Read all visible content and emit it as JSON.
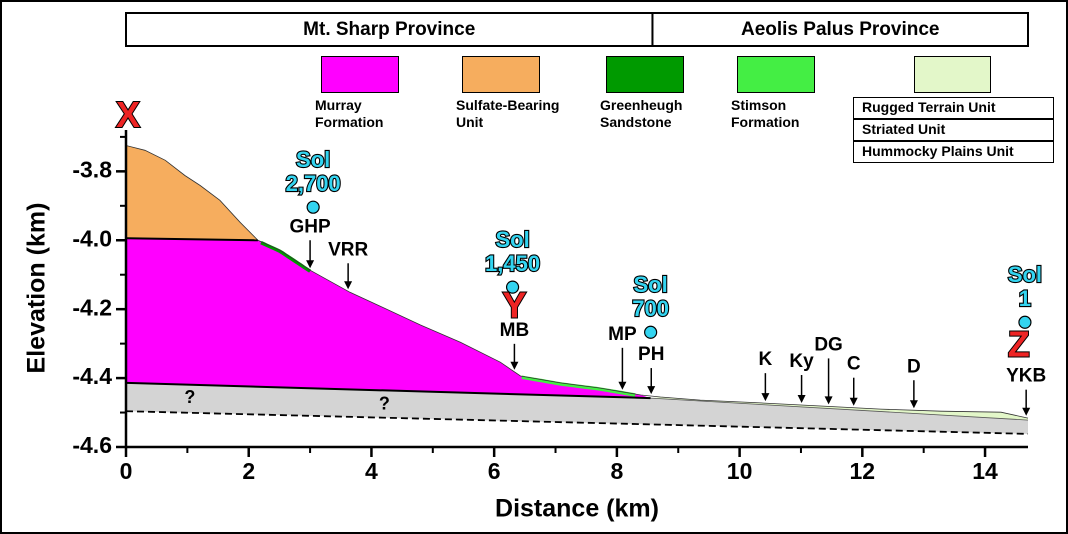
{
  "chart_data": {
    "type": "cross-section",
    "x_label": "Distance (km)",
    "y_label": "Elevation (km)",
    "xlim": [
      0,
      14.7
    ],
    "ylim": [
      -4.6,
      -3.68
    ],
    "xticks": [
      0,
      2,
      4,
      6,
      8,
      10,
      12,
      14
    ],
    "xminorticks": [
      1,
      3,
      5,
      7,
      9,
      11,
      13
    ],
    "yticks": [
      -3.8,
      {
        "value": -4,
        "label": "-4.0"
      },
      -4.2,
      -4.4,
      -4.6
    ],
    "yminorticks": [
      -3.7,
      -3.9,
      -4.1,
      -4.3,
      -4.5
    ],
    "provinces": [
      {
        "name": "Mt. Sharp Province",
        "x": [
          0,
          8.58
        ]
      },
      {
        "name": "Aeolis Palus Province",
        "x": [
          8.58,
          14.7
        ]
      }
    ],
    "legend": {
      "units": [
        {
          "name": "Murray Formation",
          "color": "#ff00ff"
        },
        {
          "name": "Sulfate-Bearing Unit",
          "color": "#f6ad5e"
        },
        {
          "name": "Greenheugh Sandstone",
          "color": "#009a00",
          "extent": [
            2.2,
            3.0
          ]
        },
        {
          "name": "Stimson Formation",
          "color": "#44ee44",
          "extent": [
            6.45,
            8.3
          ]
        }
      ],
      "plains": {
        "color": "#e3f7c9",
        "units": [
          "Rugged Terrain Unit",
          "Striated Unit",
          "Hummocky Plains Unit"
        ]
      },
      "subsurface_color": "#d4d4d4"
    },
    "profiles": {
      "surface": {
        "x": [
          0,
          0.31,
          0.64,
          0.96,
          1.21,
          1.53,
          1.86,
          2.15,
          2.51,
          3.0,
          3.65,
          4.14,
          4.8,
          5.45,
          6.1,
          6.43,
          7.08,
          7.73,
          8.39,
          8.71,
          9.36,
          10.34,
          11.32,
          12.3,
          13.28,
          14.26,
          14.7
        ],
        "y": [
          -3.725,
          -3.739,
          -3.768,
          -3.812,
          -3.841,
          -3.884,
          -3.948,
          -4.0,
          -4.029,
          -4.087,
          -4.151,
          -4.191,
          -4.246,
          -4.296,
          -4.354,
          -4.394,
          -4.414,
          -4.429,
          -4.449,
          -4.455,
          -4.464,
          -4.472,
          -4.481,
          -4.49,
          -4.496,
          -4.499,
          -4.516
        ]
      },
      "sulfate_base": {
        "x": [
          0,
          2.15
        ],
        "y": [
          -3.994,
          -4.0
        ]
      },
      "murray_base": {
        "x": [
          0,
          8.55
        ],
        "y": [
          -4.414,
          -4.458
        ]
      },
      "plains_base": {
        "x": [
          8.55,
          14.7
        ],
        "y": [
          -4.458,
          -4.522
        ]
      },
      "lower_boundary": {
        "x": [
          0,
          14.7
        ],
        "y": [
          -4.496,
          -4.562
        ]
      }
    },
    "uncertain": [
      {
        "label": "?",
        "x": 1.04,
        "y": -4.458
      },
      {
        "label": "?",
        "x": 4.21,
        "y": -4.478
      }
    ],
    "locations": [
      {
        "label": "GHP",
        "x": 3.0
      },
      {
        "label": "VRR",
        "x": 3.62
      },
      {
        "label": "MB",
        "x": 6.33
      },
      {
        "label": "MP",
        "x": 8.09
      },
      {
        "label": "PH",
        "x": 8.56
      },
      {
        "label": "K",
        "x": 10.42
      },
      {
        "label": "Ky",
        "x": 11.01
      },
      {
        "label": "DG",
        "x": 11.45
      },
      {
        "label": "C",
        "x": 11.86
      },
      {
        "label": "D",
        "x": 12.84
      },
      {
        "label": "YKB",
        "x": 14.67
      }
    ],
    "sols": [
      {
        "lines": [
          "Sol",
          "2,700"
        ],
        "x": 3.05,
        "y": -3.904
      },
      {
        "lines": [
          "Sol",
          "1,450"
        ],
        "x": 6.3,
        "y": -4.136
      },
      {
        "lines": [
          "Sol",
          "700"
        ],
        "x": 8.55,
        "y": -4.267
      },
      {
        "lines": [
          "Sol",
          "1"
        ],
        "x": 14.65,
        "y": -4.238
      }
    ],
    "stations": [
      {
        "label": "X",
        "x": 0,
        "y": -3.643
      },
      {
        "label": "Y",
        "x": 6.33,
        "y": -4.197
      },
      {
        "label": "Z",
        "x": 14.55,
        "y": -4.31
      }
    ]
  }
}
